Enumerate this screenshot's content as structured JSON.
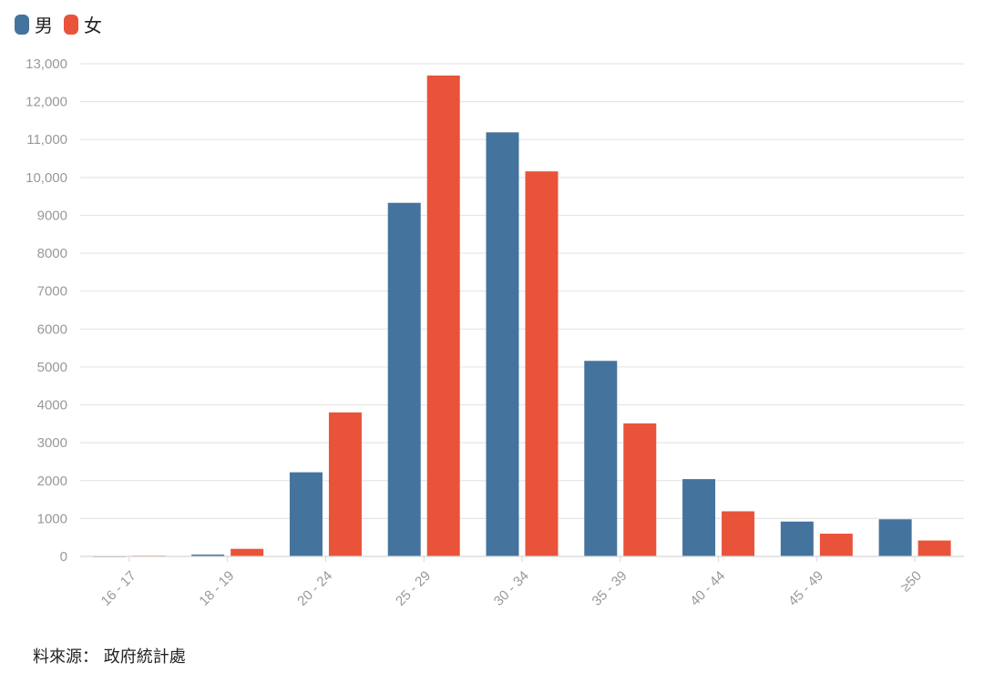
{
  "chart_data": {
    "type": "bar",
    "title": "",
    "xlabel": "",
    "ylabel": "",
    "categories": [
      "16 - 17",
      "18 - 19",
      "20 - 24",
      "25 - 29",
      "30 - 34",
      "35 - 39",
      "40 - 44",
      "45 - 49",
      "≥50"
    ],
    "series": [
      {
        "name": "男",
        "color": "#44749d",
        "values": [
          0,
          50,
          2220,
          9330,
          11190,
          5160,
          2040,
          920,
          980
        ]
      },
      {
        "name": "女",
        "color": "#e9533a",
        "values": [
          20,
          200,
          3800,
          12690,
          10160,
          3510,
          1190,
          600,
          420
        ]
      }
    ],
    "ylim": [
      0,
      13000
    ],
    "yticks": [
      0,
      1000,
      2000,
      3000,
      4000,
      5000,
      6000,
      7000,
      8000,
      9000,
      10000,
      11000,
      12000,
      13000
    ],
    "ytick_labels": [
      "0",
      "1000",
      "2000",
      "3000",
      "4000",
      "5000",
      "6000",
      "7000",
      "8000",
      "9000",
      "10,000",
      "11,000",
      "12,000",
      "13,000"
    ],
    "grid": true,
    "legend_position": "top-left",
    "source": "料來源： 政府統計處"
  }
}
